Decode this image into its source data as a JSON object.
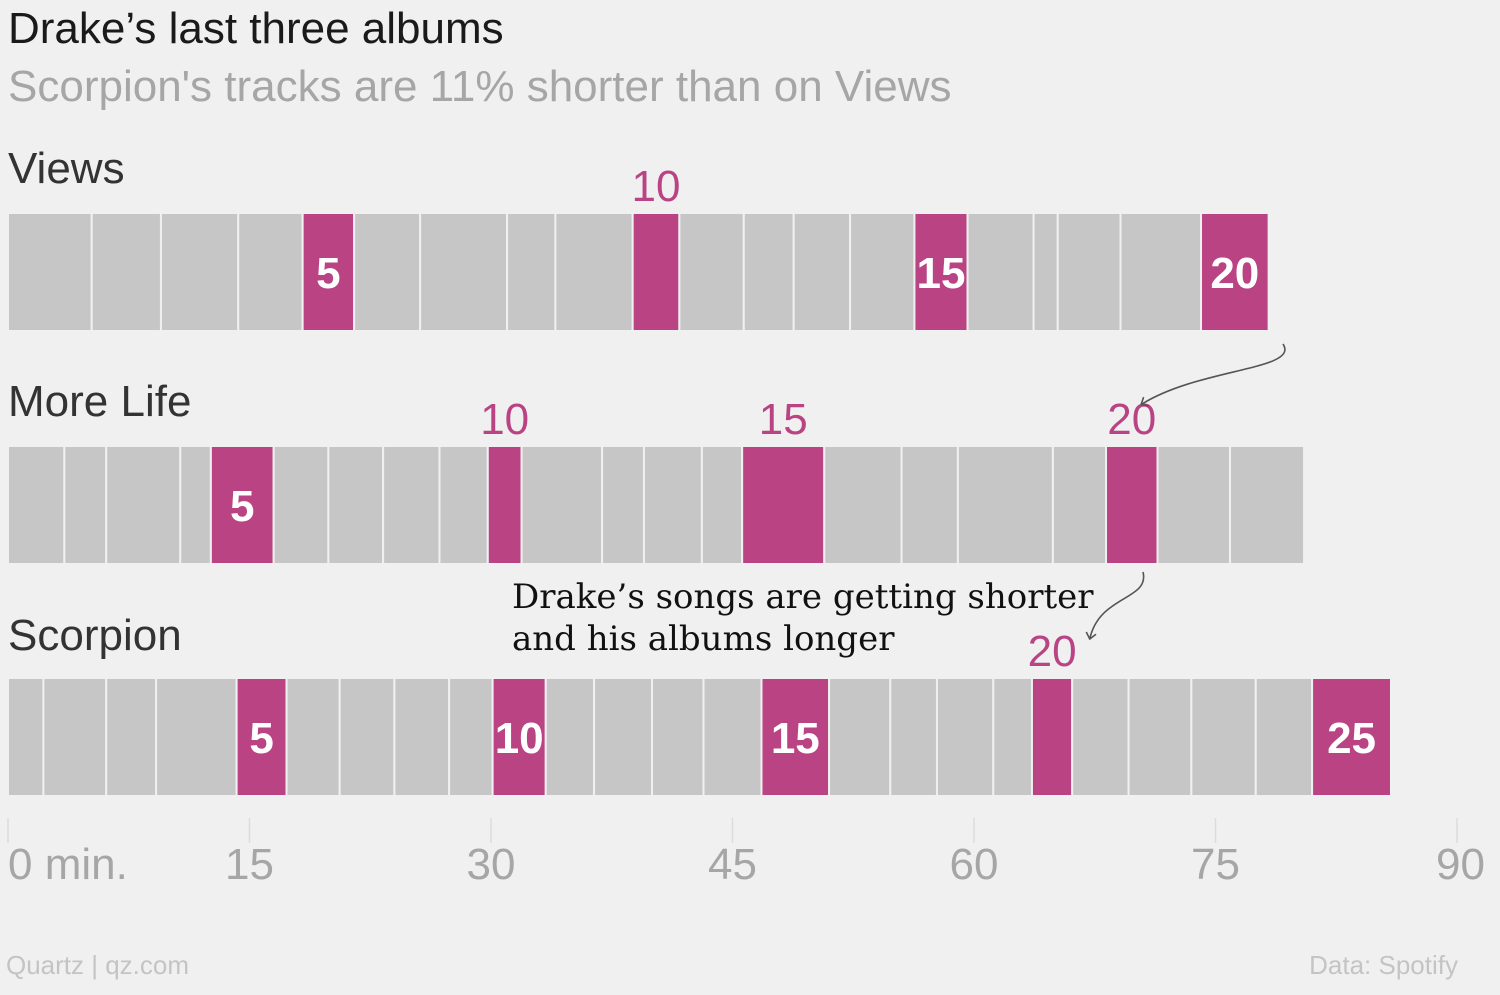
{
  "header": {
    "title": "Drake’s last three albums",
    "subtitle": "Scorpion's tracks are 11% shorter than on Views"
  },
  "annotation": {
    "line1": "Drake’s songs are getting shorter",
    "line2": "and his albums longer"
  },
  "footer": {
    "credit": "Quartz | qz.com",
    "source": "Data: Spotify"
  },
  "colors": {
    "track": "#c6c6c6",
    "highlight": "#b94383",
    "background": "#f0f0f0",
    "divider": "#f0f0f0",
    "axis_text": "#a6a6a6",
    "arrow": "#555555"
  },
  "chart_data": {
    "type": "bar",
    "orientation": "horizontal-stacked",
    "xlim": [
      0,
      90
    ],
    "x_ticks": [
      0,
      15,
      30,
      45,
      60,
      75,
      90
    ],
    "x_tick_labels": [
      "0 min.",
      "15",
      "30",
      "45",
      "60",
      "75",
      "90"
    ],
    "grid": true,
    "highlight_every": 5,
    "series": [
      {
        "name": "Views",
        "track_lengths_min": [
          5.2,
          4.3,
          4.8,
          4.0,
          3.2,
          4.1,
          5.4,
          3.0,
          4.8,
          2.9,
          4.0,
          3.1,
          3.5,
          4.0,
          3.3,
          4.1,
          1.5,
          3.9,
          5.0,
          4.2
        ],
        "track_label_placement": {
          "5": "inside",
          "10": "above",
          "15": "inside",
          "20": "inside"
        }
      },
      {
        "name": "More Life",
        "track_lengths_min": [
          3.5,
          2.6,
          4.6,
          1.9,
          3.9,
          3.4,
          3.4,
          3.5,
          3.0,
          2.1,
          5.0,
          2.6,
          3.6,
          2.5,
          5.1,
          4.8,
          3.5,
          5.9,
          3.3,
          3.2,
          4.5,
          4.6
        ],
        "track_label_placement": {
          "5": "inside",
          "10": "above",
          "15": "above",
          "20": "above"
        }
      },
      {
        "name": "Scorpion",
        "track_lengths_min": [
          2.2,
          3.9,
          3.1,
          5.0,
          3.1,
          3.3,
          3.4,
          3.4,
          2.7,
          3.3,
          3.0,
          3.6,
          3.2,
          3.6,
          4.2,
          3.8,
          2.9,
          3.5,
          2.4,
          2.5,
          3.5,
          3.9,
          4.0,
          3.5,
          4.9
        ],
        "track_label_placement": {
          "5": "inside",
          "10": "inside",
          "15": "inside",
          "20": "above",
          "25": "inside"
        }
      }
    ]
  }
}
